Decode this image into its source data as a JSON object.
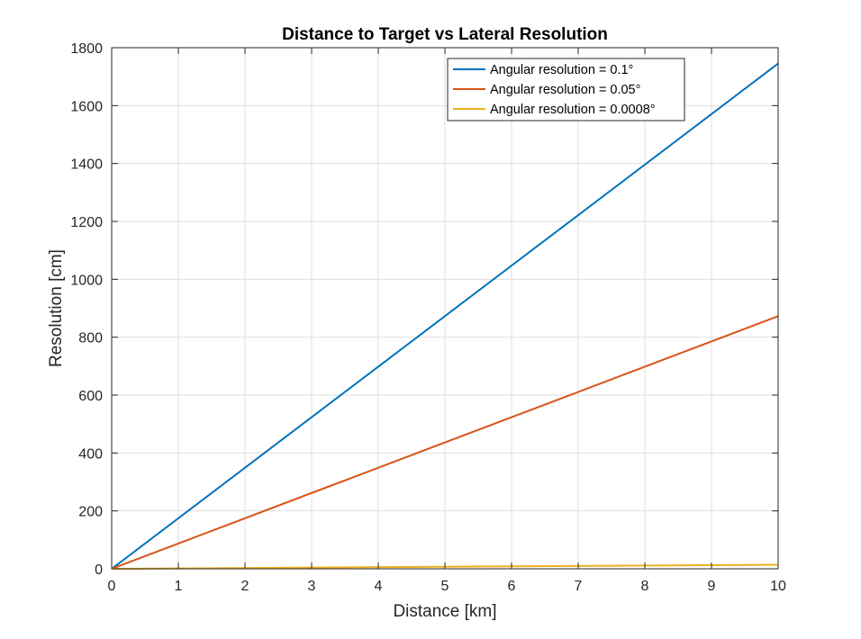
{
  "chart_data": {
    "type": "line",
    "title": "Distance to Target vs Lateral Resolution",
    "xlabel": "Distance [km]",
    "ylabel": "Resolution [cm]",
    "xlim": [
      0,
      10
    ],
    "ylim": [
      0,
      1800
    ],
    "xticks": [
      0,
      1,
      2,
      3,
      4,
      5,
      6,
      7,
      8,
      9,
      10
    ],
    "yticks": [
      0,
      200,
      400,
      600,
      800,
      1000,
      1200,
      1400,
      1600,
      1800
    ],
    "grid": true,
    "legend_position": "top-right",
    "series": [
      {
        "name": "Angular resolution = 0.1°",
        "color": "#0072BD",
        "x": [
          0,
          10
        ],
        "y": [
          0,
          1745.3
        ]
      },
      {
        "name": "Angular resolution = 0.05°",
        "color": "#D95319",
        "x": [
          0,
          10
        ],
        "y": [
          0,
          872.7
        ]
      },
      {
        "name": "Angular resolution = 0.0008°",
        "color": "#EDB120",
        "x": [
          0,
          10
        ],
        "y": [
          0,
          14.0
        ]
      }
    ]
  }
}
